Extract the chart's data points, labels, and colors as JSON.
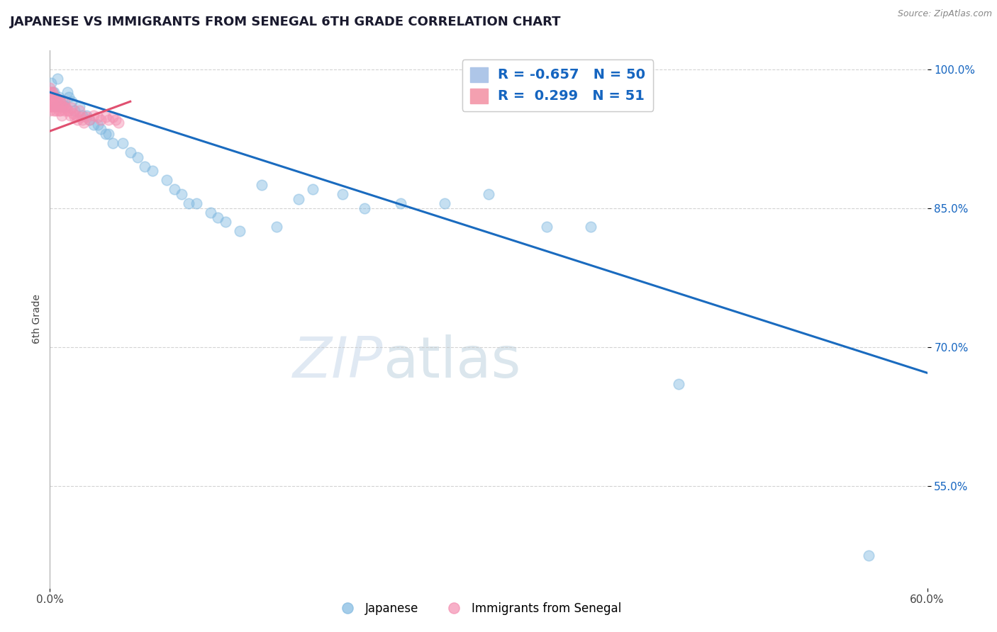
{
  "title": "JAPANESE VS IMMIGRANTS FROM SENEGAL 6TH GRADE CORRELATION CHART",
  "source_text": "Source: ZipAtlas.com",
  "ylabel": "6th Grade",
  "xlim": [
    0.0,
    0.6
  ],
  "ylim": [
    0.44,
    1.02
  ],
  "ytick_vals": [
    0.55,
    0.7,
    0.85,
    1.0
  ],
  "ytick_labels": [
    "55.0%",
    "70.0%",
    "85.0%",
    "100.0%"
  ],
  "watermark_zip": "ZIP",
  "watermark_atlas": "atlas",
  "blue_color": "#7fb8e0",
  "pink_color": "#f48fb1",
  "blue_line_color": "#1a6bbf",
  "pink_line_color": "#e05070",
  "grid_color": "#c8c8c8",
  "background_color": "#ffffff",
  "blue_scatter_x": [
    0.001,
    0.002,
    0.003,
    0.004,
    0.005,
    0.006,
    0.007,
    0.008,
    0.01,
    0.012,
    0.013,
    0.015,
    0.017,
    0.02,
    0.022,
    0.025,
    0.027,
    0.03,
    0.033,
    0.035,
    0.038,
    0.04,
    0.043,
    0.05,
    0.055,
    0.06,
    0.065,
    0.07,
    0.08,
    0.085,
    0.09,
    0.095,
    0.1,
    0.11,
    0.115,
    0.12,
    0.13,
    0.145,
    0.155,
    0.17,
    0.18,
    0.2,
    0.215,
    0.24,
    0.27,
    0.3,
    0.34,
    0.37,
    0.43,
    0.56
  ],
  "blue_scatter_y": [
    0.985,
    0.975,
    0.975,
    0.96,
    0.99,
    0.97,
    0.965,
    0.96,
    0.96,
    0.975,
    0.97,
    0.965,
    0.955,
    0.96,
    0.95,
    0.95,
    0.945,
    0.94,
    0.94,
    0.935,
    0.93,
    0.93,
    0.92,
    0.92,
    0.91,
    0.905,
    0.895,
    0.89,
    0.88,
    0.87,
    0.865,
    0.855,
    0.855,
    0.845,
    0.84,
    0.835,
    0.825,
    0.875,
    0.83,
    0.86,
    0.87,
    0.865,
    0.85,
    0.855,
    0.855,
    0.865,
    0.83,
    0.83,
    0.66,
    0.475
  ],
  "pink_scatter_x": [
    0.0,
    0.0,
    0.0,
    0.0,
    0.0,
    0.001,
    0.001,
    0.001,
    0.001,
    0.002,
    0.002,
    0.002,
    0.003,
    0.003,
    0.003,
    0.004,
    0.004,
    0.005,
    0.005,
    0.006,
    0.006,
    0.007,
    0.007,
    0.008,
    0.008,
    0.009,
    0.01,
    0.01,
    0.011,
    0.012,
    0.013,
    0.014,
    0.015,
    0.016,
    0.017,
    0.018,
    0.019,
    0.02,
    0.021,
    0.022,
    0.023,
    0.025,
    0.027,
    0.03,
    0.033,
    0.035,
    0.038,
    0.04,
    0.043,
    0.045,
    0.047
  ],
  "pink_scatter_y": [
    0.98,
    0.975,
    0.965,
    0.96,
    0.955,
    0.975,
    0.97,
    0.965,
    0.96,
    0.975,
    0.965,
    0.96,
    0.97,
    0.96,
    0.955,
    0.968,
    0.955,
    0.968,
    0.96,
    0.965,
    0.955,
    0.965,
    0.955,
    0.96,
    0.95,
    0.96,
    0.965,
    0.955,
    0.958,
    0.955,
    0.955,
    0.95,
    0.958,
    0.952,
    0.948,
    0.95,
    0.945,
    0.955,
    0.948,
    0.945,
    0.942,
    0.948,
    0.945,
    0.95,
    0.948,
    0.945,
    0.948,
    0.945,
    0.948,
    0.945,
    0.942
  ],
  "blue_trendline_x": [
    0.0,
    0.6
  ],
  "blue_trendline_y": [
    0.975,
    0.672
  ],
  "pink_trendline_x": [
    0.0,
    0.055
  ],
  "pink_trendline_y": [
    0.933,
    0.965
  ]
}
